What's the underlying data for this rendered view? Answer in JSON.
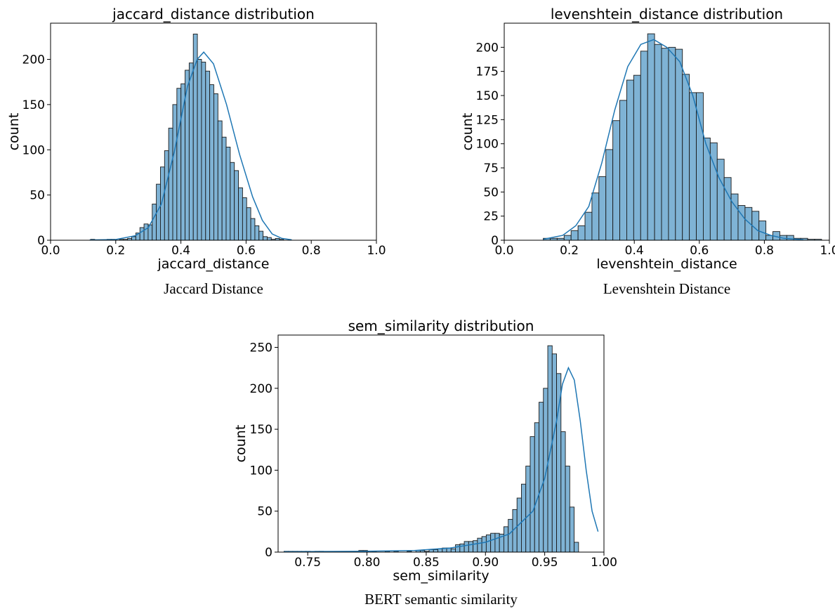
{
  "chart_data": [
    {
      "type": "histogram",
      "title": "jaccard_distance distribution",
      "xlabel": "jaccard_distance",
      "ylabel": "count",
      "caption": "Jaccard Distance",
      "xlim": [
        0,
        1
      ],
      "ylim": [
        0,
        240
      ],
      "xticks": [
        0.0,
        0.2,
        0.4,
        0.6,
        0.8,
        1.0
      ],
      "xtick_labels": [
        "0.0",
        "0.2",
        "0.4",
        "0.6",
        "0.8",
        "1.0"
      ],
      "yticks": [
        0,
        50,
        100,
        150,
        200
      ],
      "ytick_labels": [
        "0",
        "50",
        "100",
        "150",
        "200"
      ],
      "bin_start": 0.123,
      "bin_width": 0.0126,
      "counts": [
        1,
        0,
        0,
        0,
        1,
        1,
        0,
        1,
        1,
        2,
        4,
        8,
        14,
        18,
        17,
        40,
        62,
        81,
        99,
        124,
        150,
        168,
        173,
        188,
        196,
        228,
        200,
        197,
        187,
        172,
        162,
        132,
        114,
        103,
        86,
        77,
        58,
        47,
        36,
        24,
        16,
        10,
        4,
        3,
        1,
        2,
        1
      ],
      "kde": [
        [
          0.12,
          0.3
        ],
        [
          0.2,
          0.8
        ],
        [
          0.26,
          5
        ],
        [
          0.3,
          14
        ],
        [
          0.34,
          40
        ],
        [
          0.38,
          98
        ],
        [
          0.42,
          170
        ],
        [
          0.45,
          200
        ],
        [
          0.47,
          208
        ],
        [
          0.5,
          195
        ],
        [
          0.54,
          150
        ],
        [
          0.58,
          95
        ],
        [
          0.62,
          48
        ],
        [
          0.65,
          22
        ],
        [
          0.68,
          7
        ],
        [
          0.71,
          2
        ],
        [
          0.74,
          0.5
        ]
      ],
      "colors": {
        "bar": "#7fb3d5",
        "edge": "#1a1a1a",
        "kde": "#1f77b4"
      }
    },
    {
      "type": "histogram",
      "title": "levenshtein_distance distribution",
      "xlabel": "levenshtein_distance",
      "ylabel": "count",
      "caption": "Levenshtein Distance",
      "xlim": [
        0,
        1
      ],
      "ylim": [
        0,
        225
      ],
      "xticks": [
        0.0,
        0.2,
        0.4,
        0.6,
        0.8,
        1.0
      ],
      "xtick_labels": [
        "0.0",
        "0.2",
        "0.4",
        "0.6",
        "0.8",
        "1.0"
      ],
      "yticks": [
        0,
        25,
        50,
        75,
        100,
        125,
        150,
        175,
        200
      ],
      "ytick_labels": [
        "0",
        "25",
        "50",
        "75",
        "100",
        "125",
        "150",
        "175",
        "200"
      ],
      "bin_start": 0.12,
      "bin_width": 0.0214,
      "counts": [
        2,
        2,
        2,
        5,
        10,
        15,
        29,
        49,
        66,
        94,
        124,
        145,
        166,
        171,
        196,
        214,
        203,
        199,
        200,
        198,
        172,
        153,
        153,
        106,
        101,
        84,
        65,
        48,
        36,
        34,
        30,
        20,
        5,
        9,
        5,
        5,
        2,
        2,
        1,
        1
      ],
      "kde": [
        [
          0.12,
          1
        ],
        [
          0.18,
          5
        ],
        [
          0.22,
          15
        ],
        [
          0.26,
          35
        ],
        [
          0.3,
          80
        ],
        [
          0.34,
          135
        ],
        [
          0.38,
          180
        ],
        [
          0.42,
          203
        ],
        [
          0.46,
          208
        ],
        [
          0.5,
          200
        ],
        [
          0.54,
          185
        ],
        [
          0.58,
          150
        ],
        [
          0.62,
          100
        ],
        [
          0.66,
          65
        ],
        [
          0.7,
          40
        ],
        [
          0.74,
          22
        ],
        [
          0.78,
          10
        ],
        [
          0.82,
          5
        ],
        [
          0.86,
          2
        ],
        [
          0.92,
          0.5
        ]
      ],
      "colors": {
        "bar": "#7fb3d5",
        "edge": "#1a1a1a",
        "kde": "#1f77b4"
      }
    },
    {
      "type": "histogram",
      "title": "sem_similarity distribution",
      "xlabel": "sem_similarity",
      "ylabel": "count",
      "caption": "BERT semantic similarity",
      "xlim": [
        0.725,
        1.0
      ],
      "ylim": [
        0,
        265
      ],
      "xticks": [
        0.75,
        0.8,
        0.85,
        0.9,
        0.95,
        1.0
      ],
      "xtick_labels": [
        "0.75",
        "0.80",
        "0.85",
        "0.90",
        "0.95",
        "1.00"
      ],
      "yticks": [
        0,
        50,
        100,
        150,
        200,
        250
      ],
      "ytick_labels": [
        "0",
        "50",
        "100",
        "150",
        "200",
        "250"
      ],
      "bin_start": 0.73,
      "bin_width": 0.00371,
      "counts": [
        1,
        1,
        1,
        1,
        1,
        1,
        0,
        1,
        1,
        0,
        0,
        0,
        0,
        0,
        0,
        0,
        0,
        2,
        2,
        0,
        1,
        0,
        0,
        1,
        0,
        1,
        0,
        0,
        1,
        0,
        2,
        2,
        1,
        3,
        3,
        4,
        5,
        5,
        4,
        9,
        10,
        13,
        13,
        14,
        17,
        19,
        21,
        23,
        23,
        22,
        31,
        40,
        52,
        66,
        83,
        105,
        141,
        158,
        183,
        200,
        252,
        242,
        218,
        147,
        105,
        55,
        12,
        0
      ],
      "kde": [
        [
          0.73,
          0.5
        ],
        [
          0.8,
          1
        ],
        [
          0.84,
          2
        ],
        [
          0.87,
          5
        ],
        [
          0.9,
          12
        ],
        [
          0.92,
          22
        ],
        [
          0.94,
          50
        ],
        [
          0.95,
          90
        ],
        [
          0.96,
          160
        ],
        [
          0.965,
          205
        ],
        [
          0.97,
          225
        ],
        [
          0.975,
          210
        ],
        [
          0.98,
          160
        ],
        [
          0.985,
          100
        ],
        [
          0.99,
          50
        ],
        [
          0.995,
          25
        ]
      ],
      "colors": {
        "bar": "#7fb3d5",
        "edge": "#1a1a1a",
        "kde": "#1f77b4"
      }
    }
  ]
}
